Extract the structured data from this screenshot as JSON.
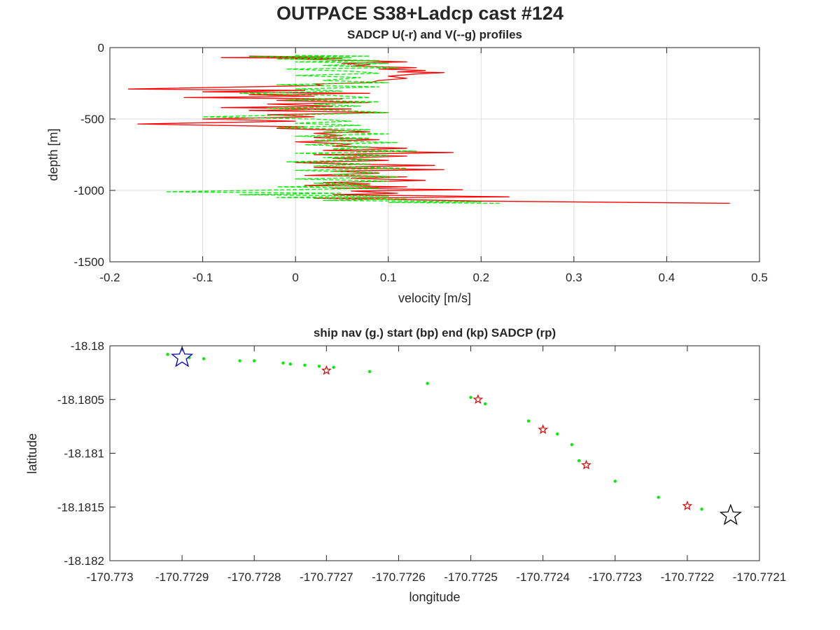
{
  "figure": {
    "suptitle": "OUTPACE S38+Ladcp cast #124"
  },
  "chart_data": [
    {
      "type": "line",
      "title": "SADCP U(-r) and V(--g) profiles",
      "xlabel": "velocity [m/s]",
      "ylabel": "depth [m]",
      "xlim": [
        -0.2,
        0.5
      ],
      "ylim": [
        -1500,
        0
      ],
      "xticks": [
        -0.2,
        -0.1,
        0,
        0.1,
        0.2,
        0.3,
        0.4,
        0.5
      ],
      "xtick_labels": [
        "-0.2",
        "-0.1",
        "0",
        "0.1",
        "0.2",
        "0.3",
        "0.4",
        "0.5"
      ],
      "yticks": [
        -1500,
        -1000,
        -500,
        0
      ],
      "ytick_labels": [
        "-1500",
        "-1000",
        "-500",
        "0"
      ],
      "grid": true,
      "series": [
        {
          "color": "#ff0000",
          "style": "solid",
          "points": [
            [
              -0.05,
              -60
            ],
            [
              0.03,
              -65
            ],
            [
              -0.08,
              -70
            ],
            [
              0.05,
              -75
            ],
            [
              0.0,
              -80
            ],
            [
              0.06,
              -90
            ],
            [
              0.12,
              -100
            ],
            [
              0.05,
              -110
            ],
            [
              0.08,
              -120
            ],
            [
              0.06,
              -130
            ],
            [
              0.13,
              -140
            ],
            [
              0.09,
              -150
            ],
            [
              0.14,
              -160
            ],
            [
              0.11,
              -170
            ],
            [
              0.16,
              -175
            ],
            [
              0.13,
              -185
            ],
            [
              0.1,
              -200
            ],
            [
              0.12,
              -215
            ],
            [
              0.09,
              -230
            ],
            [
              0.08,
              -245
            ],
            [
              0.02,
              -255
            ],
            [
              0.03,
              -265
            ],
            [
              -0.18,
              -290
            ],
            [
              0.01,
              -300
            ],
            [
              -0.1,
              -310
            ],
            [
              0.08,
              -320
            ],
            [
              -0.05,
              -330
            ],
            [
              0.02,
              -340
            ],
            [
              -0.12,
              -350
            ],
            [
              0.05,
              -360
            ],
            [
              -0.02,
              -370
            ],
            [
              0.08,
              -385
            ],
            [
              -0.03,
              -395
            ],
            [
              0.04,
              -410
            ],
            [
              -0.08,
              -420
            ],
            [
              0.06,
              -430
            ],
            [
              -0.05,
              -440
            ],
            [
              0.1,
              -455
            ],
            [
              -0.03,
              -470
            ],
            [
              0.02,
              -485
            ],
            [
              -0.1,
              -500
            ],
            [
              0.0,
              -515
            ],
            [
              -0.17,
              -535
            ],
            [
              -0.08,
              -545
            ],
            [
              0.01,
              -555
            ],
            [
              -0.02,
              -565
            ],
            [
              0.03,
              -575
            ],
            [
              0.08,
              -590
            ],
            [
              0.02,
              -600
            ],
            [
              0.05,
              -615
            ],
            [
              0.02,
              -630
            ],
            [
              0.09,
              -645
            ],
            [
              0.0,
              -660
            ],
            [
              0.06,
              -675
            ],
            [
              0.04,
              -690
            ],
            [
              0.12,
              -705
            ],
            [
              0.03,
              -720
            ],
            [
              0.17,
              -735
            ],
            [
              0.02,
              -750
            ],
            [
              0.12,
              -760
            ],
            [
              0.04,
              -775
            ],
            [
              0.1,
              -790
            ],
            [
              0.0,
              -805
            ],
            [
              0.05,
              -815
            ],
            [
              0.15,
              -825
            ],
            [
              0.02,
              -840
            ],
            [
              0.16,
              -855
            ],
            [
              0.04,
              -865
            ],
            [
              0.09,
              -880
            ],
            [
              0.01,
              -895
            ],
            [
              0.12,
              -905
            ],
            [
              0.06,
              -915
            ],
            [
              0.14,
              -930
            ],
            [
              0.03,
              -945
            ],
            [
              0.08,
              -955
            ],
            [
              0.01,
              -965
            ],
            [
              0.12,
              -975
            ],
            [
              0.04,
              -985
            ],
            [
              0.18,
              -995
            ],
            [
              0.06,
              -1005
            ],
            [
              0.11,
              -1020
            ],
            [
              0.04,
              -1030
            ],
            [
              0.23,
              -1045
            ],
            [
              0.02,
              -1055
            ],
            [
              0.12,
              -1065
            ],
            [
              0.2,
              -1075
            ],
            [
              0.468,
              -1090
            ]
          ]
        },
        {
          "color": "#00ee00",
          "style": "dashed",
          "points": [
            [
              0.0,
              -55
            ],
            [
              0.08,
              -60
            ],
            [
              -0.05,
              -65
            ],
            [
              0.06,
              -70
            ],
            [
              -0.02,
              -80
            ],
            [
              0.09,
              -90
            ],
            [
              0.0,
              -100
            ],
            [
              0.1,
              -110
            ],
            [
              0.03,
              -125
            ],
            [
              0.11,
              -140
            ],
            [
              -0.01,
              -150
            ],
            [
              0.06,
              -165
            ],
            [
              0.09,
              -180
            ],
            [
              0.0,
              -195
            ],
            [
              0.07,
              -210
            ],
            [
              0.03,
              -230
            ],
            [
              0.1,
              -245
            ],
            [
              -0.02,
              -260
            ],
            [
              0.09,
              -275
            ],
            [
              0.0,
              -290
            ],
            [
              0.05,
              -305
            ],
            [
              -0.06,
              -320
            ],
            [
              0.04,
              -335
            ],
            [
              0.08,
              -350
            ],
            [
              -0.01,
              -365
            ],
            [
              0.09,
              -380
            ],
            [
              0.02,
              -395
            ],
            [
              0.07,
              -410
            ],
            [
              -0.03,
              -425
            ],
            [
              0.05,
              -440
            ],
            [
              0.1,
              -455
            ],
            [
              0.01,
              -470
            ],
            [
              -0.1,
              -485
            ],
            [
              0.02,
              -500
            ],
            [
              0.06,
              -515
            ],
            [
              0.0,
              -530
            ],
            [
              0.07,
              -545
            ],
            [
              -0.02,
              -560
            ],
            [
              0.08,
              -575
            ],
            [
              0.03,
              -590
            ],
            [
              0.1,
              -605
            ],
            [
              0.0,
              -620
            ],
            [
              0.08,
              -635
            ],
            [
              0.02,
              -650
            ],
            [
              0.11,
              -665
            ],
            [
              0.01,
              -680
            ],
            [
              0.08,
              -695
            ],
            [
              0.04,
              -710
            ],
            [
              0.13,
              -725
            ],
            [
              0.0,
              -740
            ],
            [
              0.1,
              -755
            ],
            [
              0.03,
              -770
            ],
            [
              0.09,
              -785
            ],
            [
              -0.01,
              -800
            ],
            [
              0.08,
              -815
            ],
            [
              0.02,
              -830
            ],
            [
              0.12,
              -845
            ],
            [
              0.0,
              -860
            ],
            [
              0.09,
              -875
            ],
            [
              0.04,
              -890
            ],
            [
              0.11,
              -905
            ],
            [
              0.0,
              -920
            ],
            [
              0.1,
              -935
            ],
            [
              0.02,
              -950
            ],
            [
              0.08,
              -965
            ],
            [
              -0.02,
              -975
            ],
            [
              0.09,
              -985
            ],
            [
              -0.14,
              -1010
            ],
            [
              0.05,
              -1020
            ],
            [
              -0.06,
              -1030
            ],
            [
              0.1,
              -1040
            ],
            [
              -0.02,
              -1050
            ],
            [
              0.12,
              -1060
            ],
            [
              0.03,
              -1070
            ],
            [
              0.2,
              -1080
            ],
            [
              0.1,
              -1085
            ],
            [
              0.22,
              -1090
            ]
          ]
        }
      ]
    },
    {
      "type": "scatter",
      "title": "ship nav (g.) start (bp) end (kp) SADCP (rp)",
      "xlabel": "longitude",
      "ylabel": "latitude",
      "xlim": [
        -170.773,
        -170.7721
      ],
      "ylim": [
        -18.182,
        -18.18
      ],
      "xticks": [
        -170.773,
        -170.7729,
        -170.7728,
        -170.7727,
        -170.7726,
        -170.7725,
        -170.7724,
        -170.7723,
        -170.7722,
        -170.7721
      ],
      "xtick_labels": [
        "-170.773",
        "-170.7729",
        "-170.7728",
        "-170.7727",
        "-170.7726",
        "-170.7725",
        "-170.7724",
        "-170.7723",
        "-170.7722",
        "-170.7721"
      ],
      "yticks": [
        -18.182,
        -18.1815,
        -18.181,
        -18.1805,
        -18.18
      ],
      "ytick_labels": [
        "-18.182",
        "-18.1815",
        "-18.181",
        "-18.1805",
        "-18.18"
      ],
      "grid": false,
      "ship_nav": {
        "color": "#00ee00",
        "marker": "dot",
        "points": [
          [
            -170.77292,
            -18.18008
          ],
          [
            -170.77289,
            -18.18011
          ],
          [
            -170.77287,
            -18.18012
          ],
          [
            -170.77282,
            -18.18014
          ],
          [
            -170.7728,
            -18.18014
          ],
          [
            -170.77276,
            -18.18016
          ],
          [
            -170.77275,
            -18.18017
          ],
          [
            -170.77273,
            -18.18018
          ],
          [
            -170.77271,
            -18.18019
          ],
          [
            -170.77269,
            -18.1802
          ],
          [
            -170.77264,
            -18.18024
          ],
          [
            -170.77256,
            -18.18035
          ],
          [
            -170.7725,
            -18.18048
          ],
          [
            -170.77248,
            -18.18054
          ],
          [
            -170.77242,
            -18.1807
          ],
          [
            -170.77238,
            -18.18082
          ],
          [
            -170.77236,
            -18.18092
          ],
          [
            -170.77235,
            -18.18107
          ],
          [
            -170.7723,
            -18.18126
          ],
          [
            -170.77224,
            -18.18141
          ],
          [
            -170.77218,
            -18.18152
          ]
        ]
      },
      "start": {
        "color": "#0000cc",
        "marker": "star",
        "point": [
          -170.7729,
          -18.18011
        ]
      },
      "end": {
        "color": "#000000",
        "marker": "star",
        "point": [
          -170.77214,
          -18.18158
        ]
      },
      "sadcp": {
        "color": "#dd0000",
        "marker": "star",
        "points": [
          [
            -170.7727,
            -18.18023
          ],
          [
            -170.77249,
            -18.1805
          ],
          [
            -170.7724,
            -18.18078
          ],
          [
            -170.77234,
            -18.18111
          ],
          [
            -170.7722,
            -18.18149
          ]
        ]
      }
    }
  ]
}
